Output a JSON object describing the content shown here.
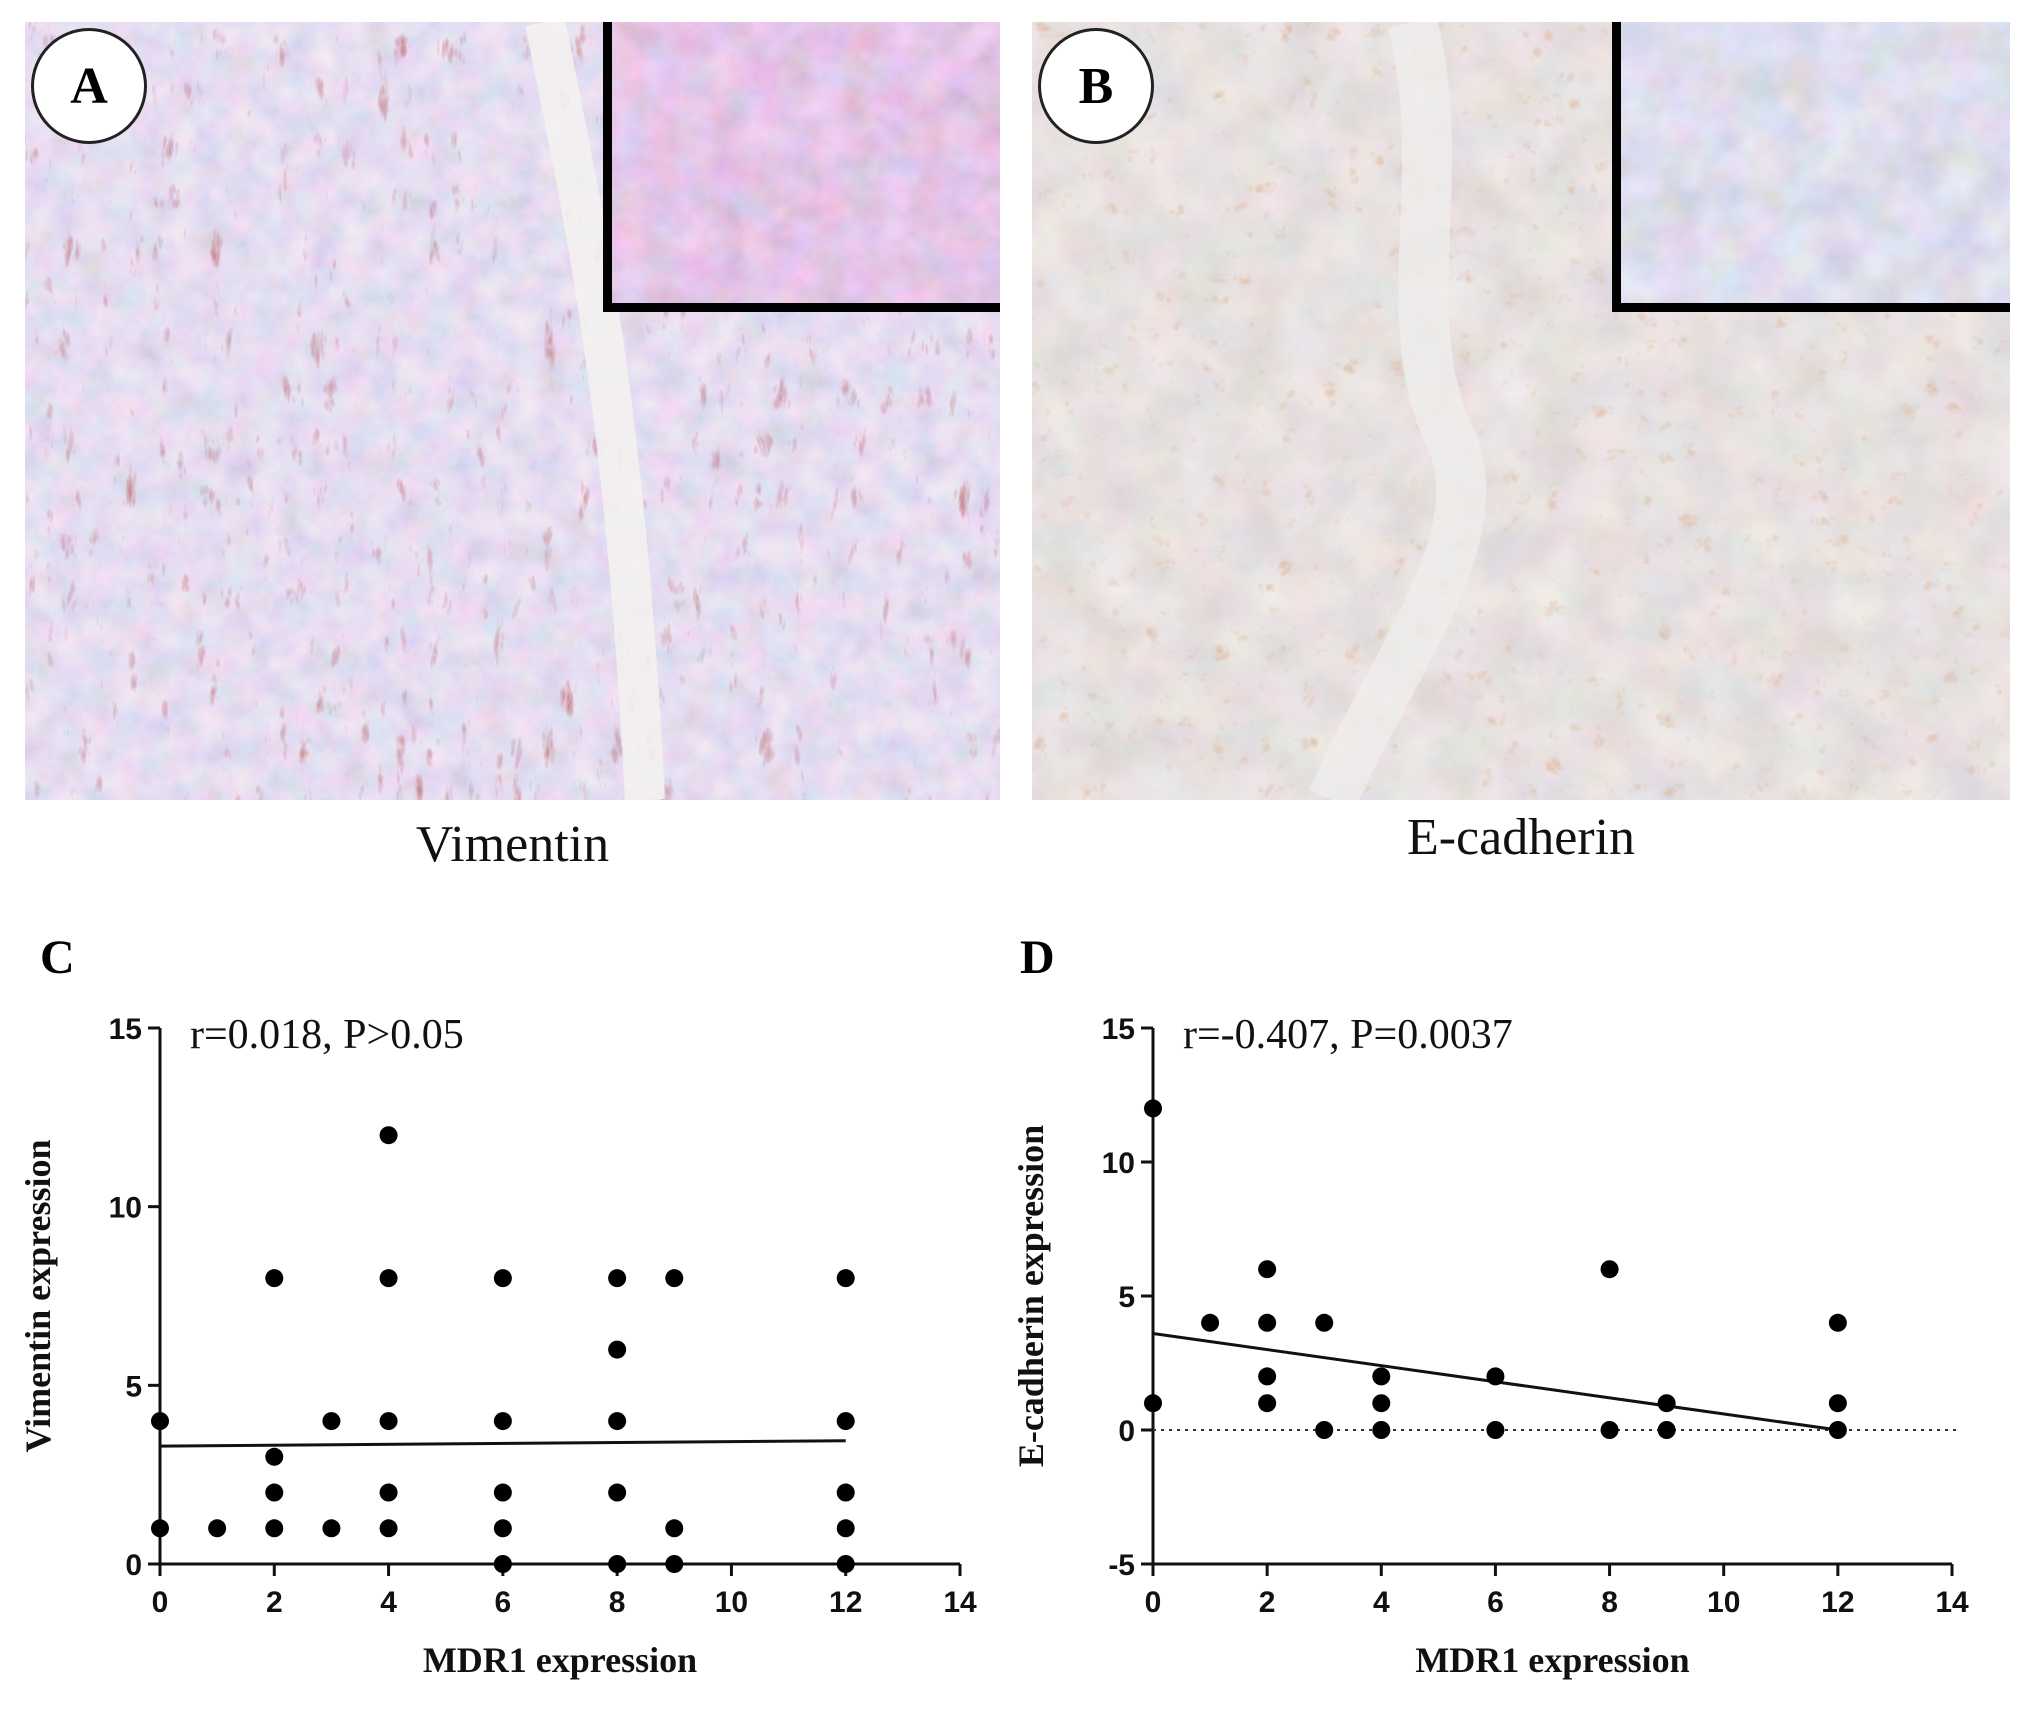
{
  "panels": {
    "A": {
      "letter": "A",
      "caption": "Vimentin"
    },
    "B": {
      "letter": "B",
      "caption": "E-cadherin"
    }
  },
  "chart_data": [
    {
      "panel": "C",
      "type": "scatter",
      "xlabel": "MDR1 expression",
      "ylabel": "Vimentin expression",
      "annotation": "r=0.018, P>0.05",
      "xlim": [
        0,
        14
      ],
      "ylim": [
        0,
        15
      ],
      "xticks": [
        0,
        2,
        4,
        6,
        8,
        10,
        12,
        14
      ],
      "yticks": [
        0,
        5,
        10,
        15
      ],
      "points": [
        {
          "x": 0,
          "y": 4
        },
        {
          "x": 0,
          "y": 1
        },
        {
          "x": 1,
          "y": 1
        },
        {
          "x": 2,
          "y": 8
        },
        {
          "x": 2,
          "y": 3
        },
        {
          "x": 2,
          "y": 2
        },
        {
          "x": 2,
          "y": 1
        },
        {
          "x": 3,
          "y": 4
        },
        {
          "x": 3,
          "y": 1
        },
        {
          "x": 4,
          "y": 12
        },
        {
          "x": 4,
          "y": 8
        },
        {
          "x": 4,
          "y": 4
        },
        {
          "x": 4,
          "y": 2
        },
        {
          "x": 4,
          "y": 1
        },
        {
          "x": 6,
          "y": 8
        },
        {
          "x": 6,
          "y": 4
        },
        {
          "x": 6,
          "y": 2
        },
        {
          "x": 6,
          "y": 1
        },
        {
          "x": 6,
          "y": 0
        },
        {
          "x": 8,
          "y": 8
        },
        {
          "x": 8,
          "y": 6
        },
        {
          "x": 8,
          "y": 4
        },
        {
          "x": 8,
          "y": 2
        },
        {
          "x": 8,
          "y": 0
        },
        {
          "x": 9,
          "y": 8
        },
        {
          "x": 9,
          "y": 1
        },
        {
          "x": 9,
          "y": 0
        },
        {
          "x": 12,
          "y": 8
        },
        {
          "x": 12,
          "y": 4
        },
        {
          "x": 12,
          "y": 2
        },
        {
          "x": 12,
          "y": 1
        },
        {
          "x": 12,
          "y": 0
        }
      ],
      "fit_line": {
        "x": [
          0,
          12
        ],
        "y": [
          3.3,
          3.45
        ]
      },
      "zero_line": false
    },
    {
      "panel": "D",
      "type": "scatter",
      "xlabel": "MDR1 expression",
      "ylabel": "E-cadherin expression",
      "annotation": "r=-0.407, P=0.0037",
      "xlim": [
        0,
        14
      ],
      "ylim": [
        -5,
        15
      ],
      "xticks": [
        0,
        2,
        4,
        6,
        8,
        10,
        12,
        14
      ],
      "yticks": [
        -5,
        0,
        5,
        10,
        15
      ],
      "points": [
        {
          "x": 0,
          "y": 12
        },
        {
          "x": 0,
          "y": 1
        },
        {
          "x": 1,
          "y": 4
        },
        {
          "x": 2,
          "y": 6
        },
        {
          "x": 2,
          "y": 4
        },
        {
          "x": 2,
          "y": 2
        },
        {
          "x": 2,
          "y": 1
        },
        {
          "x": 3,
          "y": 4
        },
        {
          "x": 3,
          "y": 0
        },
        {
          "x": 4,
          "y": 2
        },
        {
          "x": 4,
          "y": 1
        },
        {
          "x": 4,
          "y": 0
        },
        {
          "x": 6,
          "y": 2
        },
        {
          "x": 6,
          "y": 0
        },
        {
          "x": 8,
          "y": 6
        },
        {
          "x": 8,
          "y": 0
        },
        {
          "x": 9,
          "y": 1
        },
        {
          "x": 9,
          "y": 0
        },
        {
          "x": 12,
          "y": 4
        },
        {
          "x": 12,
          "y": 1
        },
        {
          "x": 12,
          "y": 0
        }
      ],
      "fit_line": {
        "x": [
          0,
          12
        ],
        "y": [
          3.6,
          0.0
        ]
      },
      "zero_line": true
    }
  ]
}
